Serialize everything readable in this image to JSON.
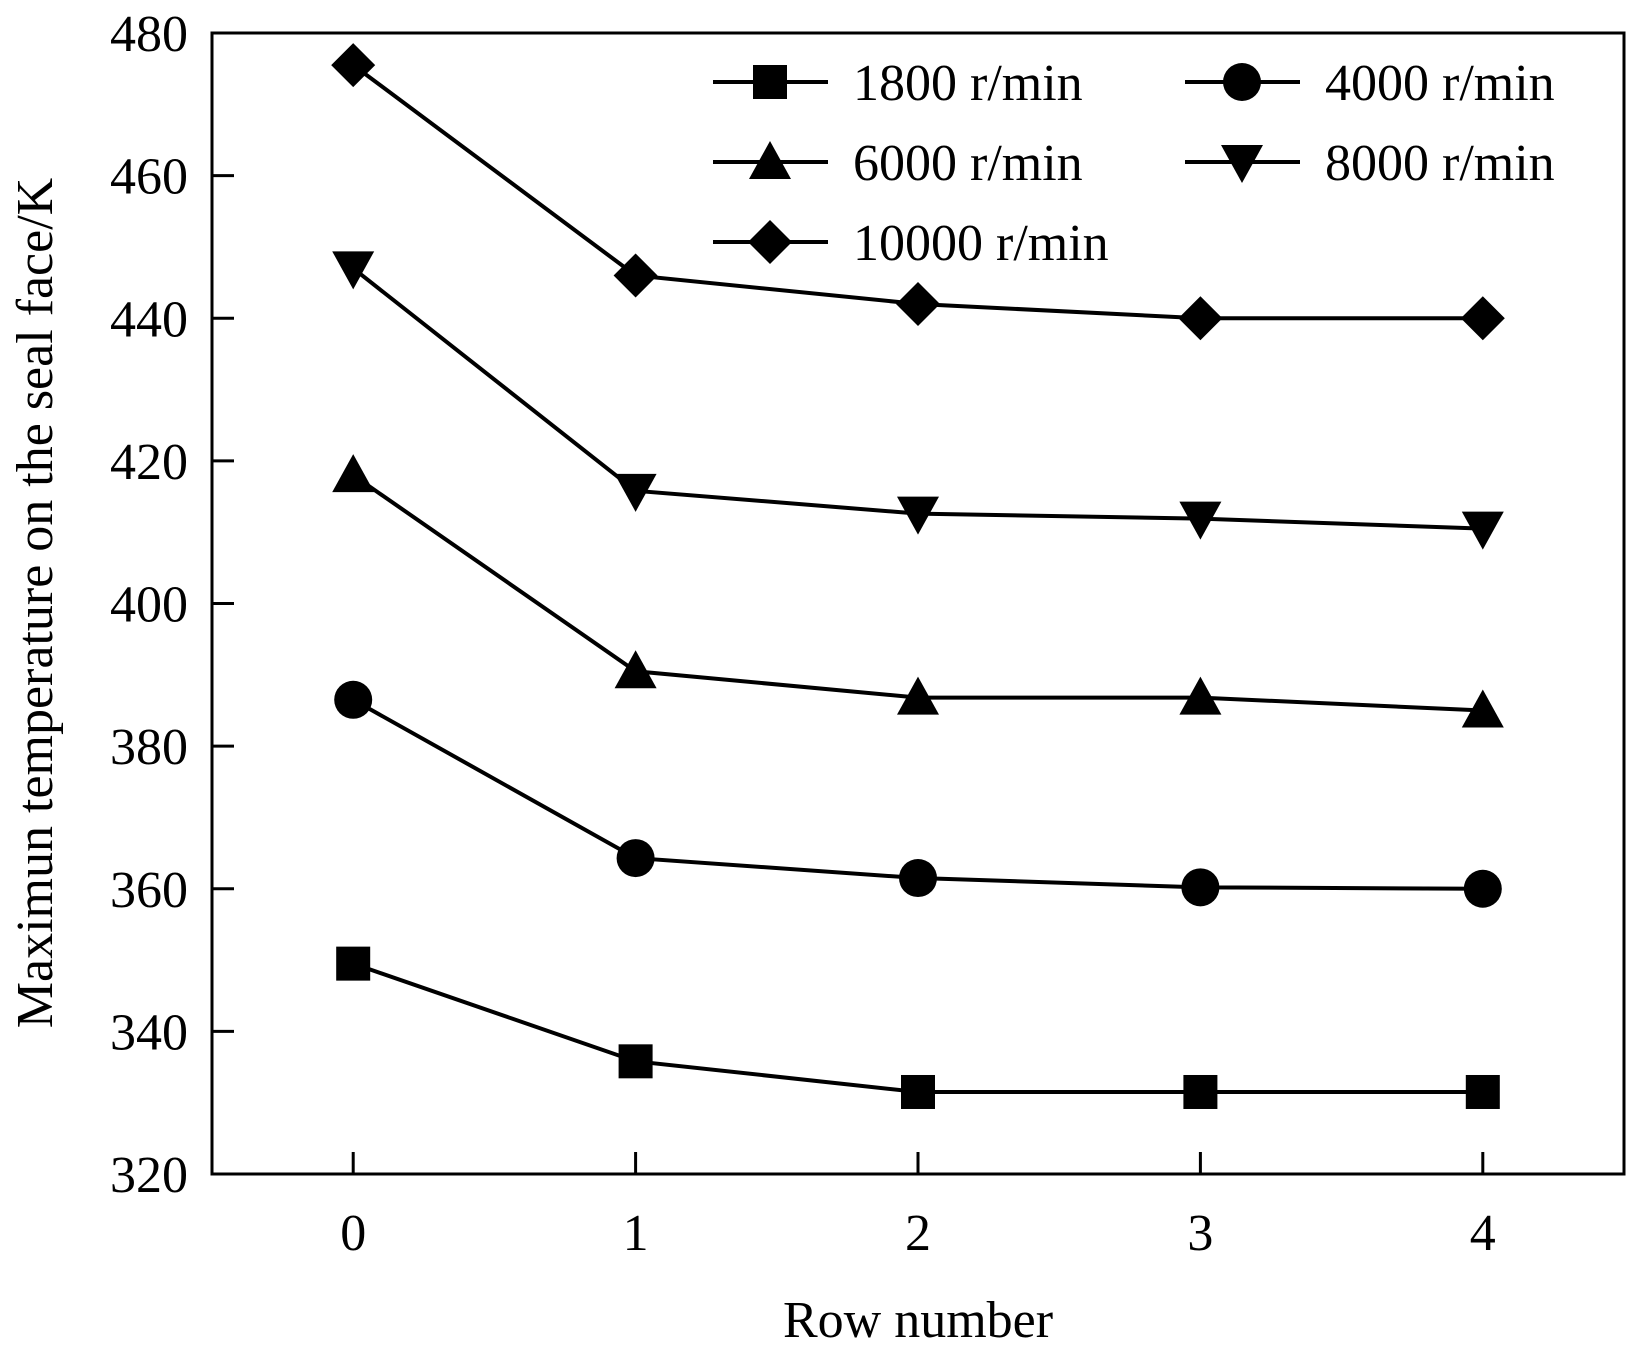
{
  "chart_data": {
    "type": "line",
    "title": "",
    "xlabel": "Row number",
    "ylabel": "Maximun temperature on the seal face/K",
    "x": [
      0,
      1,
      2,
      3,
      4
    ],
    "xticks": [
      "0",
      "1",
      "2",
      "3",
      "4"
    ],
    "ylim": [
      320,
      480
    ],
    "yticks": [
      "320",
      "340",
      "360",
      "380",
      "400",
      "420",
      "440",
      "460",
      "480"
    ],
    "xlim": [
      -0.5,
      4.5
    ],
    "grid": false,
    "legend_position": "top-right",
    "series": [
      {
        "name": "1800 r/min",
        "marker": "square",
        "values": [
          349.5,
          335.8,
          331.5,
          331.5,
          331.5
        ]
      },
      {
        "name": "4000 r/min",
        "marker": "circle",
        "values": [
          386.5,
          364.3,
          361.5,
          360.2,
          360.0
        ]
      },
      {
        "name": "6000 r/min",
        "marker": "triangle-up",
        "values": [
          418.0,
          390.5,
          386.8,
          386.8,
          385.0
        ]
      },
      {
        "name": "8000 r/min",
        "marker": "triangle-down",
        "values": [
          447.0,
          415.8,
          412.6,
          411.9,
          410.5
        ]
      },
      {
        "name": "10000 r/min",
        "marker": "diamond",
        "values": [
          475.5,
          446.0,
          442.0,
          440.0,
          440.0
        ]
      }
    ]
  }
}
